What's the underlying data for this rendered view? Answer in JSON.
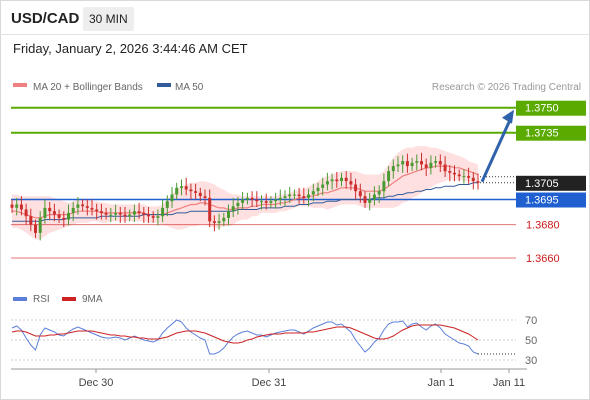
{
  "header": {
    "symbol": "USD/CAD",
    "timeframe": "30 MIN",
    "datetime": "Friday, January 2, 2026 3:44:46 AM CET"
  },
  "legend": {
    "ma20_label": "MA 20 + Bollinger Bands",
    "ma50_label": "MA 50",
    "credit": "Research © 2026 Trading Central"
  },
  "rsi_legend": {
    "rsi_label": "RSI",
    "ma_label": "9MA"
  },
  "colors": {
    "target_up": "#5aaa00",
    "pivot": "#1f5fd0",
    "support": "#cc1a1a",
    "ma20": "#f08080",
    "ma50": "#335a99",
    "arrow": "#2f62a8",
    "band_fill": "#ffd6d6",
    "rsi_line": "#5b7fd9",
    "rsi_ma": "#cc2222",
    "candle_up": "#4a9a33",
    "candle_down": "#cc2e2e"
  },
  "chart_data": {
    "type": "candlestick",
    "ylim": [
      1.3648,
      1.3757
    ],
    "levels": [
      {
        "label": "1.3750",
        "value": 1.375,
        "kind": "resistance"
      },
      {
        "label": "1.3735",
        "value": 1.3735,
        "kind": "resistance"
      },
      {
        "label": "1.3705",
        "value": 1.3705,
        "kind": "last"
      },
      {
        "label": "1.3695",
        "value": 1.3695,
        "kind": "pivot"
      },
      {
        "label": "1.3680",
        "value": 1.368,
        "kind": "support"
      },
      {
        "label": "1.3660",
        "value": 1.366,
        "kind": "support"
      }
    ],
    "x_ticks": [
      "Dec 30",
      "Dec 31",
      "Jan 1",
      "Jan 11"
    ],
    "closes": [
      1.369,
      1.3692,
      1.3689,
      1.3685,
      1.368,
      1.3675,
      1.3684,
      1.369,
      1.3688,
      1.3686,
      1.3684,
      1.3683,
      1.3687,
      1.369,
      1.3692,
      1.3691,
      1.369,
      1.3689,
      1.3688,
      1.3687,
      1.3686,
      1.3686,
      1.3687,
      1.3686,
      1.3685,
      1.3686,
      1.3688,
      1.3687,
      1.3686,
      1.3685,
      1.3684,
      1.3685,
      1.369,
      1.3694,
      1.3698,
      1.3702,
      1.3703,
      1.3701,
      1.37,
      1.3699,
      1.3697,
      1.3696,
      1.3682,
      1.3681,
      1.3682,
      1.3684,
      1.3688,
      1.3691,
      1.3693,
      1.3695,
      1.3696,
      1.3695,
      1.3694,
      1.3694,
      1.3693,
      1.3694,
      1.3695,
      1.3696,
      1.3697,
      1.3698,
      1.3698,
      1.3697,
      1.3696,
      1.3698,
      1.37,
      1.3702,
      1.3704,
      1.3706,
      1.3707,
      1.3706,
      1.3708,
      1.3706,
      1.3704,
      1.37,
      1.3697,
      1.3693,
      1.3695,
      1.3698,
      1.37,
      1.3706,
      1.3712,
      1.3715,
      1.3716,
      1.3718,
      1.3715,
      1.3717,
      1.3718,
      1.3716,
      1.3714,
      1.3717,
      1.3718,
      1.3716,
      1.3712,
      1.3711,
      1.371,
      1.3709,
      1.3709,
      1.3708,
      1.3706,
      1.3705
    ],
    "ma20": [
      1.3688,
      1.3688,
      1.3687,
      1.3686,
      1.3685,
      1.3684,
      1.3684,
      1.3685,
      1.3686,
      1.3686,
      1.3686,
      1.3686,
      1.3686,
      1.3687,
      1.3688,
      1.3688,
      1.3688,
      1.3688,
      1.3688,
      1.3687,
      1.3687,
      1.3687,
      1.3687,
      1.3687,
      1.3687,
      1.3687,
      1.3687,
      1.3687,
      1.3687,
      1.3686,
      1.3686,
      1.3686,
      1.3686,
      1.3687,
      1.3688,
      1.3689,
      1.369,
      1.3691,
      1.3692,
      1.3692,
      1.3693,
      1.3693,
      1.3692,
      1.3691,
      1.369,
      1.369,
      1.3689,
      1.3689,
      1.369,
      1.369,
      1.369,
      1.3691,
      1.3691,
      1.3692,
      1.3692,
      1.3692,
      1.3692,
      1.3693,
      1.3693,
      1.3694,
      1.3695,
      1.3696,
      1.3696,
      1.3697,
      1.3697,
      1.3698,
      1.3699,
      1.3699,
      1.37,
      1.3701,
      1.3702,
      1.3702,
      1.3702,
      1.3702,
      1.3701,
      1.37,
      1.37,
      1.37,
      1.37,
      1.3701,
      1.3703,
      1.3705,
      1.3707,
      1.3709,
      1.371,
      1.3711,
      1.3712,
      1.3713,
      1.3714,
      1.3714,
      1.3715,
      1.3715,
      1.3715,
      1.3715,
      1.3714,
      1.3714,
      1.3713,
      1.3712,
      1.3711,
      1.371
    ],
    "band_width": [
      0.001,
      0.001,
      0.001,
      0.0011,
      0.0012,
      0.0013,
      0.0013,
      0.0012,
      0.0011,
      0.001,
      0.0009,
      0.0008,
      0.0007,
      0.0007,
      0.0007,
      0.0007,
      0.0007,
      0.0006,
      0.0006,
      0.0006,
      0.0006,
      0.0005,
      0.0005,
      0.0005,
      0.0005,
      0.0005,
      0.0005,
      0.0005,
      0.0005,
      0.0005,
      0.0005,
      0.0005,
      0.0006,
      0.0008,
      0.001,
      0.0012,
      0.0013,
      0.0013,
      0.0013,
      0.0013,
      0.0013,
      0.0013,
      0.0013,
      0.0013,
      0.0012,
      0.0011,
      0.001,
      0.0009,
      0.0008,
      0.0007,
      0.0007,
      0.0006,
      0.0006,
      0.0005,
      0.0005,
      0.0005,
      0.0005,
      0.0005,
      0.0005,
      0.0005,
      0.0005,
      0.0005,
      0.0005,
      0.0006,
      0.0007,
      0.0008,
      0.0009,
      0.001,
      0.001,
      0.001,
      0.001,
      0.001,
      0.001,
      0.001,
      0.001,
      0.001,
      0.001,
      0.001,
      0.001,
      0.0011,
      0.0013,
      0.0015,
      0.0016,
      0.0016,
      0.0016,
      0.0015,
      0.0015,
      0.0014,
      0.0013,
      0.0012,
      0.0011,
      0.001,
      0.0009,
      0.0008,
      0.0008,
      0.0007,
      0.0007,
      0.0006,
      0.0006,
      0.0006
    ],
    "ma50": [
      1.3682,
      1.3682,
      1.3682,
      1.3682,
      1.3682,
      1.3682,
      1.3682,
      1.3683,
      1.3683,
      1.3683,
      1.3683,
      1.3683,
      1.3684,
      1.3684,
      1.3684,
      1.3684,
      1.3684,
      1.3684,
      1.3684,
      1.3685,
      1.3685,
      1.3685,
      1.3685,
      1.3685,
      1.3685,
      1.3685,
      1.3685,
      1.3685,
      1.3686,
      1.3686,
      1.3686,
      1.3686,
      1.3686,
      1.3686,
      1.3686,
      1.3687,
      1.3687,
      1.3687,
      1.3688,
      1.3688,
      1.3688,
      1.3688,
      1.3688,
      1.3688,
      1.3688,
      1.3688,
      1.3688,
      1.3688,
      1.3689,
      1.3689,
      1.3689,
      1.3689,
      1.3689,
      1.369,
      1.369,
      1.369,
      1.369,
      1.369,
      1.3691,
      1.3691,
      1.3691,
      1.3692,
      1.3692,
      1.3692,
      1.3693,
      1.3693,
      1.3693,
      1.3694,
      1.3694,
      1.3694,
      1.3695,
      1.3695,
      1.3695,
      1.3695,
      1.3695,
      1.3695,
      1.3695,
      1.3696,
      1.3696,
      1.3696,
      1.3697,
      1.3697,
      1.3698,
      1.3698,
      1.3699,
      1.3699,
      1.37,
      1.37,
      1.3701,
      1.3701,
      1.3702,
      1.3702,
      1.3703,
      1.3703,
      1.3703,
      1.3704,
      1.3704,
      1.3704,
      1.3705,
      1.3705
    ],
    "forecast": {
      "from": 1.3705,
      "to": 1.375
    },
    "rsi": {
      "ticks": [
        "70",
        "50",
        "30"
      ],
      "ylim": [
        22,
        78
      ],
      "values": [
        62,
        64,
        60,
        52,
        45,
        40,
        55,
        62,
        60,
        58,
        55,
        54,
        58,
        61,
        63,
        61,
        59,
        57,
        55,
        53,
        52,
        52,
        53,
        52,
        50,
        52,
        54,
        52,
        50,
        49,
        48,
        50,
        57,
        62,
        66,
        70,
        68,
        62,
        58,
        55,
        52,
        50,
        36,
        36,
        38,
        42,
        48,
        53,
        56,
        58,
        59,
        57,
        55,
        55,
        53,
        55,
        57,
        58,
        59,
        60,
        60,
        58,
        56,
        59,
        62,
        64,
        66,
        68,
        68,
        65,
        66,
        62,
        58,
        50,
        44,
        38,
        42,
        48,
        52,
        60,
        66,
        68,
        68,
        69,
        63,
        66,
        67,
        63,
        60,
        64,
        66,
        62,
        56,
        53,
        50,
        47,
        46,
        44,
        38,
        36
      ],
      "ma9": [
        58,
        59,
        59,
        58,
        56,
        54,
        54,
        54,
        55,
        55,
        56,
        56,
        57,
        58,
        59,
        59,
        59,
        59,
        58,
        57,
        56,
        55,
        55,
        54,
        54,
        53,
        53,
        52,
        52,
        51,
        51,
        51,
        52,
        53,
        55,
        57,
        58,
        59,
        59,
        59,
        58,
        57,
        55,
        53,
        51,
        49,
        48,
        47,
        47,
        48,
        50,
        51,
        53,
        54,
        55,
        56,
        56,
        56,
        57,
        57,
        57,
        57,
        57,
        58,
        58,
        59,
        60,
        61,
        62,
        63,
        63,
        63,
        62,
        60,
        58,
        56,
        54,
        52,
        51,
        51,
        52,
        54,
        57,
        60,
        62,
        64,
        65,
        65,
        65,
        65,
        65,
        65,
        64,
        63,
        62,
        60,
        58,
        56,
        53,
        50
      ]
    }
  }
}
